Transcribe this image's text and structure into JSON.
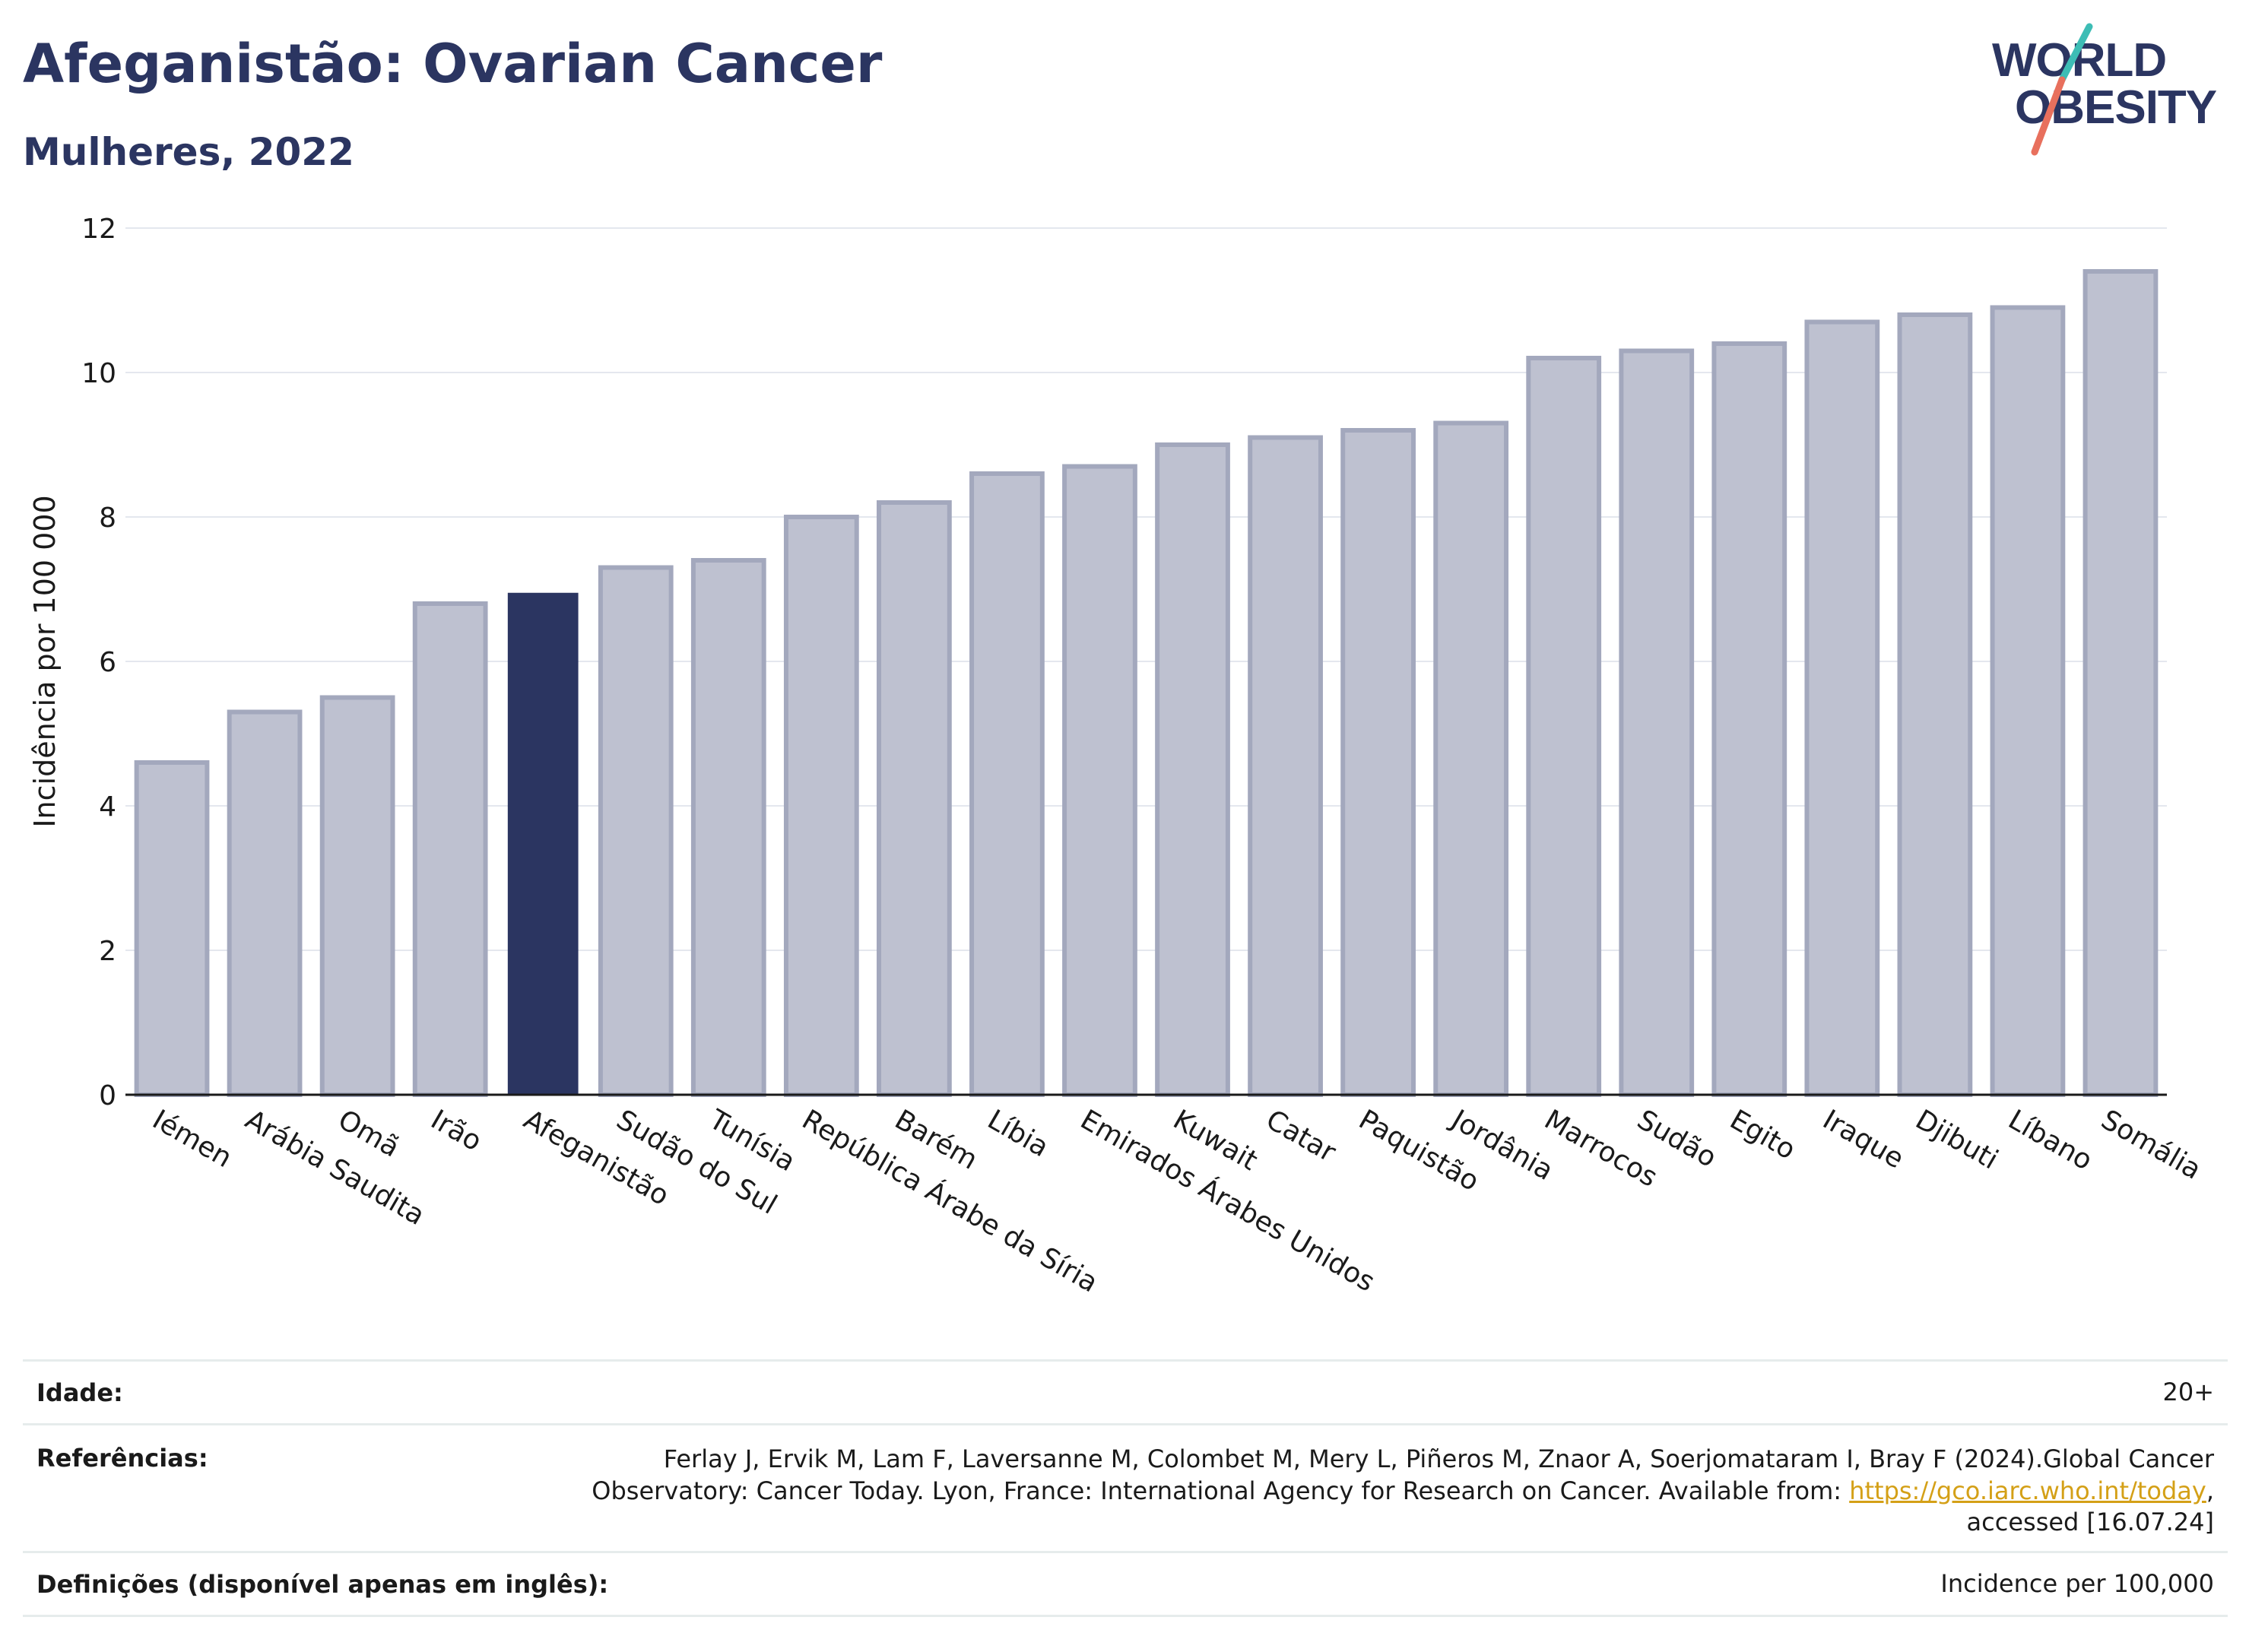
{
  "header": {
    "title": "Afeganistão: Ovarian Cancer",
    "subtitle": "Mulheres, 2022",
    "logo_line1": "WORLD",
    "logo_line2": "OBESITY"
  },
  "colors": {
    "bar_default": "#bec1d0",
    "bar_default_stroke": "#a3a8bd",
    "bar_highlight": "#2b3561",
    "title": "#2b3561",
    "grid": "#e4e7ee",
    "logo_text": "#2b3561",
    "logo_teal": "#3dbdb5",
    "logo_coral": "#e8705d"
  },
  "chart_data": {
    "type": "bar",
    "title": "Afeganistão: Ovarian Cancer",
    "subtitle": "Mulheres, 2022",
    "xlabel": "",
    "ylabel": "Incidência por 100 000",
    "ylim": [
      0,
      12
    ],
    "yticks": [
      0,
      2,
      4,
      6,
      8,
      10,
      12
    ],
    "grid": true,
    "highlight": "Afeganistão",
    "categories": [
      "Iémen",
      "Arábia Saudita",
      "Omã",
      "Irão",
      "Afeganistão",
      "Sudão do Sul",
      "Tunísia",
      "República Árabe da Síria",
      "Barém",
      "Líbia",
      "Emirados Árabes Unidos",
      "Kuwait",
      "Catar",
      "Paquistão",
      "Jordânia",
      "Marrocos",
      "Sudão",
      "Egito",
      "Iraque",
      "Djibuti",
      "Líbano",
      "Somália"
    ],
    "values": [
      4.6,
      5.3,
      5.5,
      6.8,
      6.95,
      7.3,
      7.4,
      8.0,
      8.2,
      8.6,
      8.7,
      9.0,
      9.1,
      9.2,
      9.3,
      10.2,
      10.3,
      10.4,
      10.7,
      10.8,
      10.9,
      11.4
    ]
  },
  "info": {
    "age_label": "Idade:",
    "age_value": "20+",
    "ref_label": "Referências:",
    "ref_text_1": "Ferlay J, Ervik M, Lam F, Laversanne M, Colombet M, Mery L, Piñeros M, Znaor A, Soerjomataram I, Bray F (2024).Global Cancer",
    "ref_text_2": "Observatory: Cancer Today. Lyon, France: International Agency for Research on Cancer. Available from: ",
    "ref_link": "https://gco.iarc.who.int/today",
    "ref_text_3": ",",
    "ref_text_4": "accessed [16.07.24]",
    "def_label": "Definições (disponível apenas em inglês):",
    "def_value": "Incidence per 100,000"
  }
}
